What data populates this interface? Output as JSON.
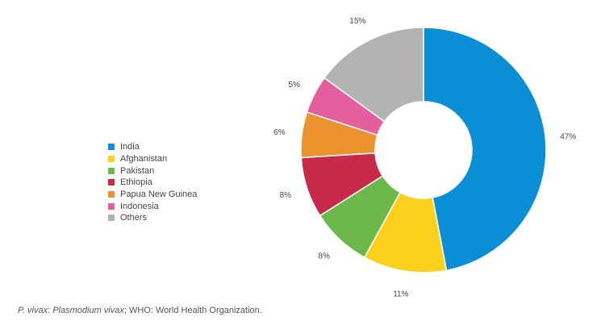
{
  "chart_data": {
    "type": "pie",
    "style": "donut",
    "start_angle": "12 o'clock",
    "direction": "clockwise",
    "categories": [
      "India",
      "Afghanistan",
      "Pakistan",
      "Ethiopia",
      "Papua New Guinea",
      "Indonesia",
      "Others"
    ],
    "values": [
      47,
      11,
      8,
      8,
      6,
      5,
      15
    ],
    "value_labels": [
      "47%",
      "11%",
      "8%",
      "8%",
      "6%",
      "5%",
      "15%"
    ],
    "colors": [
      "#0a8fd6",
      "#fcd11d",
      "#6cb84a",
      "#c82b4a",
      "#ec9330",
      "#e55f9f",
      "#b3b3b3"
    ],
    "legend_position": "left"
  },
  "footnote": {
    "abbr1": "P. vivax",
    "sep1": ": ",
    "def1": "Plasmodium vivax",
    "rest": "; WHO: World Health Organization."
  }
}
